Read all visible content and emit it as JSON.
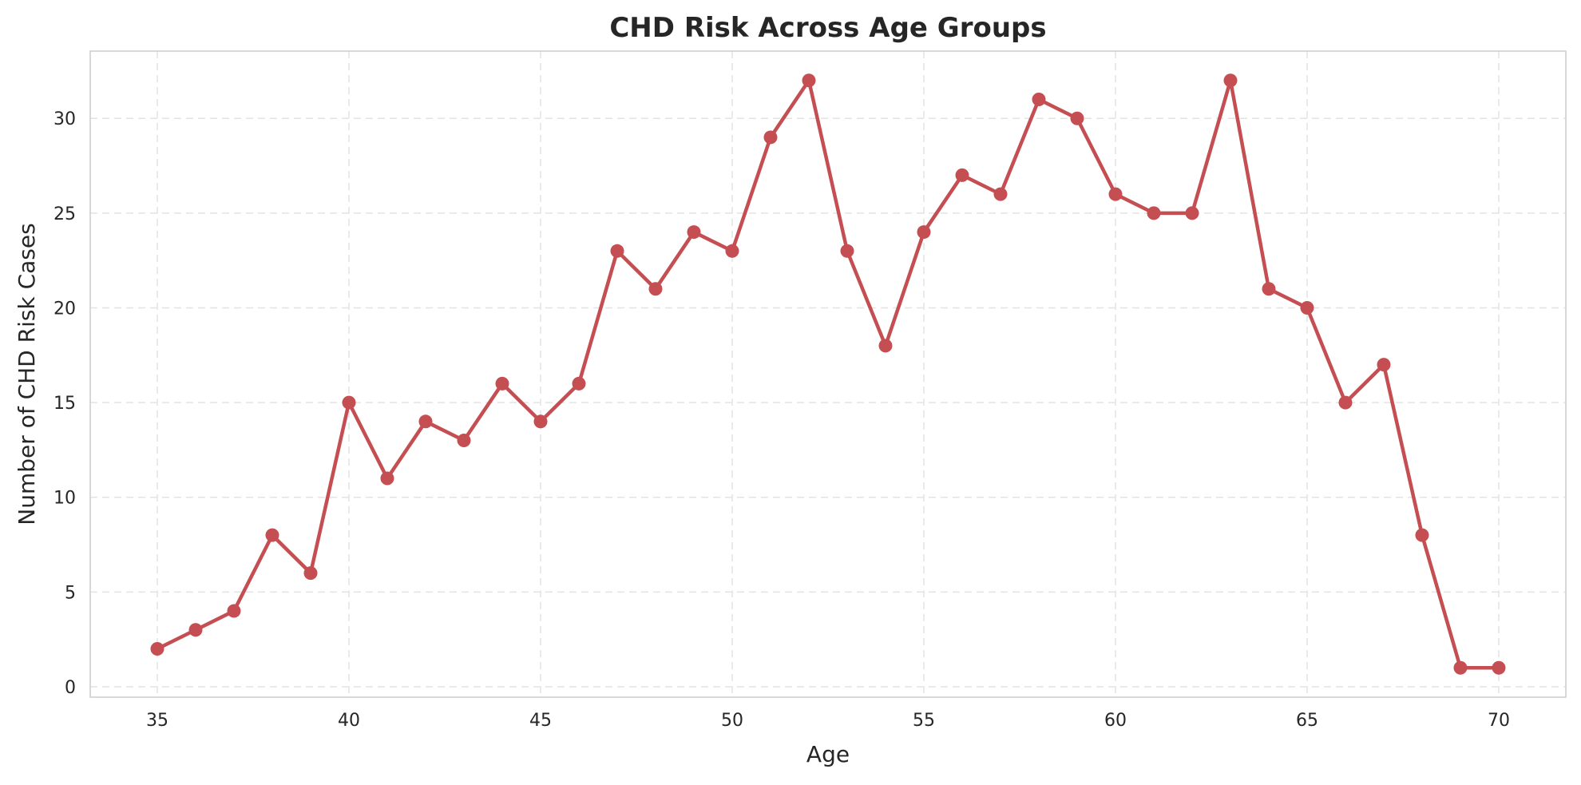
{
  "chart_data": {
    "type": "line",
    "title": "CHD Risk Across Age Groups",
    "xlabel": "Age",
    "ylabel": "Number of CHD Risk Cases",
    "xlim": [
      33.25,
      71.75
    ],
    "ylim": [
      -0.55,
      33.55
    ],
    "xticks": [
      35,
      40,
      45,
      50,
      55,
      60,
      65,
      70
    ],
    "yticks": [
      0,
      5,
      10,
      15,
      20,
      25,
      30
    ],
    "grid": true,
    "color": "#c44e52",
    "series": [
      {
        "x": [
          35,
          36,
          37,
          38,
          39,
          40,
          41,
          42,
          43,
          44,
          45,
          46,
          47,
          48,
          49,
          50,
          51,
          52,
          53,
          54,
          55,
          56,
          57,
          58,
          59,
          60,
          61,
          62,
          63,
          64,
          65,
          66,
          67,
          68,
          69,
          70
        ],
        "y": [
          2,
          3,
          4,
          8,
          6,
          15,
          11,
          14,
          13,
          16,
          14,
          16,
          23,
          21,
          24,
          23,
          29,
          32,
          23,
          18,
          24,
          27,
          26,
          31,
          30,
          26,
          25,
          25,
          32,
          21,
          20,
          15,
          17,
          8,
          1,
          1
        ]
      }
    ]
  }
}
